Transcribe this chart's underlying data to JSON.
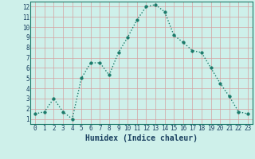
{
  "x": [
    0,
    1,
    2,
    3,
    4,
    5,
    6,
    7,
    8,
    9,
    10,
    11,
    12,
    13,
    14,
    15,
    16,
    17,
    18,
    19,
    20,
    21,
    22,
    23
  ],
  "y": [
    1.5,
    1.7,
    3.0,
    1.7,
    1.0,
    5.0,
    6.5,
    6.5,
    5.3,
    7.5,
    9.0,
    10.7,
    12.0,
    12.2,
    11.5,
    9.2,
    8.5,
    7.7,
    7.5,
    6.0,
    4.5,
    3.2,
    1.7,
    1.5
  ],
  "line_color": "#1a7a6a",
  "marker_color": "#1a7a6a",
  "bg_color": "#cef0ea",
  "grid_color": "#d4a0a0",
  "xlabel": "Humidex (Indice chaleur)",
  "xlim": [
    -0.5,
    23.5
  ],
  "ylim": [
    0.5,
    12.5
  ],
  "xticks": [
    0,
    1,
    2,
    3,
    4,
    5,
    6,
    7,
    8,
    9,
    10,
    11,
    12,
    13,
    14,
    15,
    16,
    17,
    18,
    19,
    20,
    21,
    22,
    23
  ],
  "yticks": [
    1,
    2,
    3,
    4,
    5,
    6,
    7,
    8,
    9,
    10,
    11,
    12
  ],
  "font_color": "#1a4060",
  "xlabel_fontsize": 7,
  "tick_fontsize": 5.5,
  "linewidth": 1.0,
  "markersize": 2.5
}
